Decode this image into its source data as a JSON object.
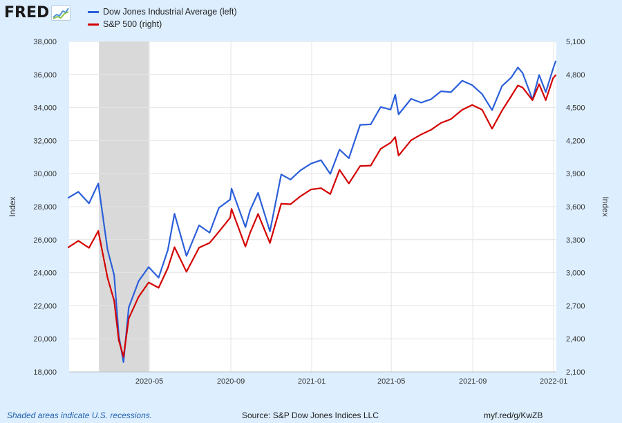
{
  "brand": {
    "name": "FRED"
  },
  "chart_data": {
    "type": "line",
    "dates": [
      "2019-12-31",
      "2020-01-15",
      "2020-01-31",
      "2020-02-14",
      "2020-02-28",
      "2020-03-09",
      "2020-03-16",
      "2020-03-23",
      "2020-03-31",
      "2020-04-15",
      "2020-04-30",
      "2020-05-15",
      "2020-05-29",
      "2020-06-08",
      "2020-06-26",
      "2020-07-15",
      "2020-07-31",
      "2020-08-14",
      "2020-08-31",
      "2020-09-02",
      "2020-09-23",
      "2020-09-30",
      "2020-10-12",
      "2020-10-30",
      "2020-11-16",
      "2020-11-30",
      "2020-12-15",
      "2020-12-31",
      "2021-01-15",
      "2021-01-29",
      "2021-02-12",
      "2021-02-26",
      "2021-03-15",
      "2021-03-31",
      "2021-04-15",
      "2021-04-30",
      "2021-05-07",
      "2021-05-12",
      "2021-05-31",
      "2021-06-15",
      "2021-06-30",
      "2021-07-15",
      "2021-07-30",
      "2021-08-16",
      "2021-08-31",
      "2021-09-15",
      "2021-09-30",
      "2021-10-15",
      "2021-10-29",
      "2021-11-08",
      "2021-11-15",
      "2021-11-30",
      "2021-12-10",
      "2021-12-20",
      "2021-12-31",
      "2022-01-04"
    ],
    "series": [
      {
        "name": "Dow Jones Industrial Average (left)",
        "axis": "left",
        "color": "#2b5fd9",
        "values": [
          28538,
          28900,
          28200,
          29400,
          25400,
          23850,
          20190,
          18591,
          21900,
          23500,
          24345,
          23700,
          25380,
          27572,
          25016,
          26870,
          26428,
          27931,
          28430,
          29100,
          26763,
          27782,
          28837,
          26501,
          29950,
          29639,
          30200,
          30606,
          30814,
          29983,
          31458,
          30932,
          32953,
          32982,
          34035,
          33875,
          34778,
          33587,
          34529,
          34299,
          34503,
          34987,
          34935,
          35625,
          35361,
          34814,
          33844,
          35295,
          35820,
          36432,
          36100,
          34484,
          35971,
          34933,
          36338,
          36800
        ]
      },
      {
        "name": "S&P 500 (right)",
        "axis": "right",
        "color": "#d40000",
        "values": [
          3231,
          3290,
          3226,
          3380,
          2954,
          2746,
          2386,
          2237,
          2585,
          2783,
          2912,
          2863,
          3044,
          3232,
          3009,
          3227,
          3271,
          3373,
          3500,
          3580,
          3237,
          3363,
          3534,
          3270,
          3627,
          3622,
          3695,
          3756,
          3768,
          3714,
          3934,
          3811,
          3969,
          3973,
          4125,
          4181,
          4232,
          4063,
          4204,
          4255,
          4298,
          4360,
          4395,
          4479,
          4523,
          4480,
          4308,
          4471,
          4605,
          4701,
          4682,
          4567,
          4712,
          4568,
          4766,
          4793
        ]
      }
    ],
    "left_axis": {
      "label": "Index",
      "min": 18000,
      "max": 38000,
      "ticks": [
        "18,000",
        "20,000",
        "22,000",
        "24,000",
        "26,000",
        "28,000",
        "30,000",
        "32,000",
        "34,000",
        "36,000",
        "38,000"
      ]
    },
    "right_axis": {
      "label": "Index",
      "min": 2100,
      "max": 5100,
      "ticks": [
        "2,100",
        "2,400",
        "2,700",
        "3,000",
        "3,300",
        "3,600",
        "3,900",
        "4,200",
        "4,500",
        "4,800",
        "5,100"
      ]
    },
    "x_axis": {
      "min": "2020-01-01",
      "max": "2022-01-05",
      "ticks": [
        {
          "date": "2020-05-01",
          "label": "2020-05"
        },
        {
          "date": "2020-09-01",
          "label": "2020-09"
        },
        {
          "date": "2021-01-01",
          "label": "2021-01"
        },
        {
          "date": "2021-05-01",
          "label": "2021-05"
        },
        {
          "date": "2021-09-01",
          "label": "2021-09"
        },
        {
          "date": "2022-01-01",
          "label": "2022-01"
        }
      ]
    },
    "recession": {
      "start": "2020-02-15",
      "end": "2020-04-30",
      "color": "#d9d9d9"
    },
    "grid": true,
    "legend_position": "top-left"
  },
  "footer": {
    "note": "Shaded areas indicate U.S. recessions.",
    "source": "Source: S&P Dow Jones Indices LLC",
    "link": "myf.red/g/KwZB"
  }
}
